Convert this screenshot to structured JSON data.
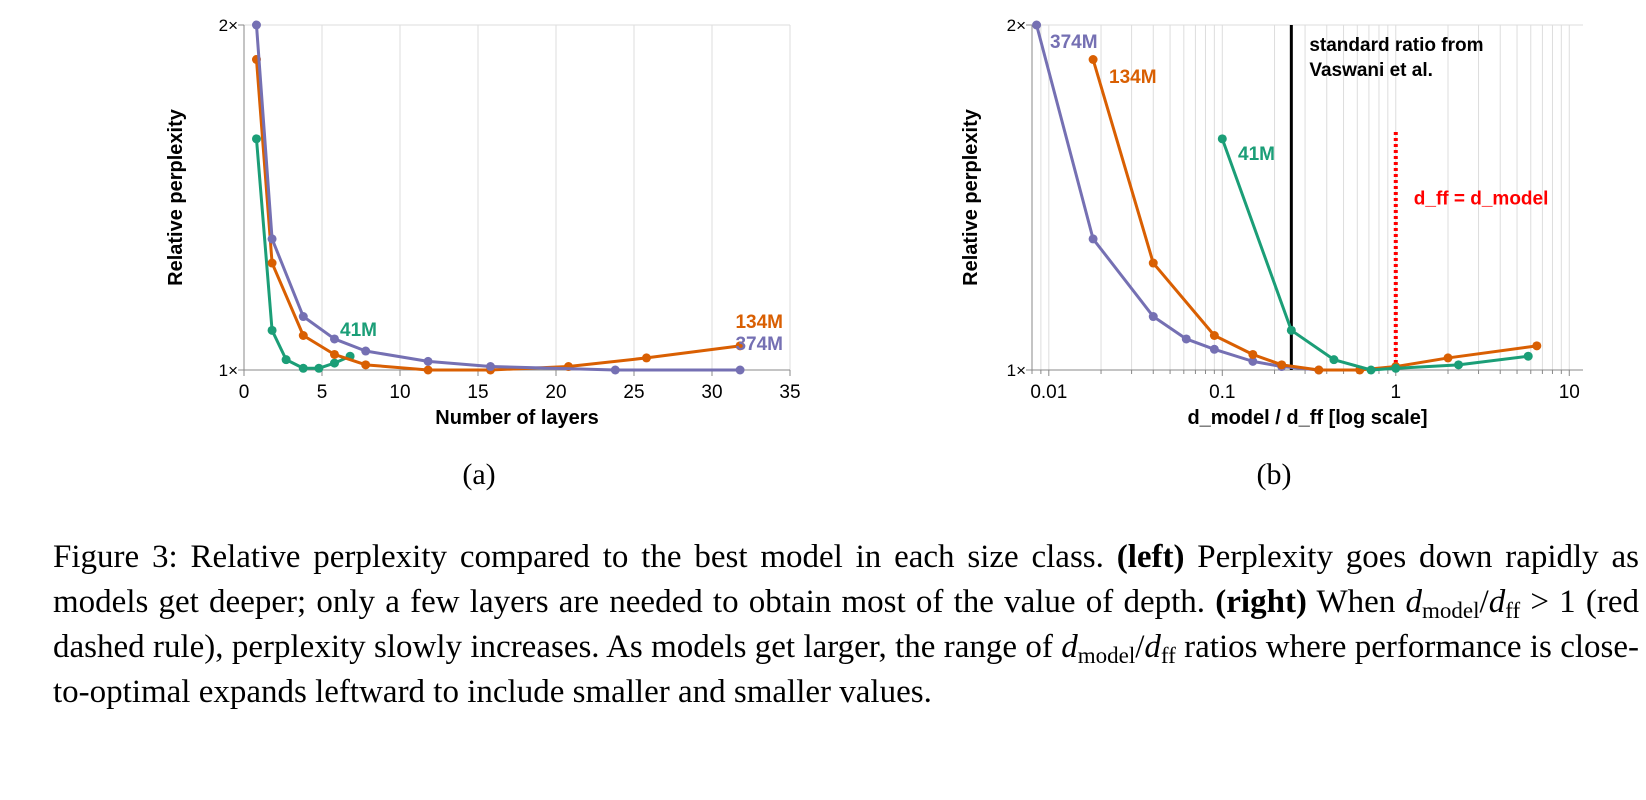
{
  "chart_data": [
    {
      "type": "line",
      "panel": "(a)",
      "xlabel": "Number of layers",
      "ylabel": "Relative perplexity",
      "xscale": "linear",
      "xlim": [
        0,
        35
      ],
      "xticks": [
        0,
        5,
        10,
        15,
        20,
        25,
        30,
        35
      ],
      "xtick_labels": [
        "0",
        "5",
        "10",
        "15",
        "20",
        "25",
        "30",
        "35"
      ],
      "ylim": [
        1,
        2
      ],
      "yticks": [
        1,
        2
      ],
      "ytick_labels": [
        "1×",
        "2×"
      ],
      "grid": true,
      "series": [
        {
          "name": "41M",
          "color": "#1b9e77",
          "x": [
            0.8,
            1.8,
            2.7,
            3.8,
            4.8,
            5.8,
            6.8
          ],
          "y": [
            1.67,
            1.115,
            1.03,
            1.005,
            1.005,
            1.02,
            1.04
          ]
        },
        {
          "name": "134M",
          "color": "#d95f02",
          "x": [
            0.8,
            1.8,
            3.8,
            5.8,
            7.8,
            11.8,
            15.8,
            20.8,
            25.8,
            31.8
          ],
          "y": [
            1.9,
            1.31,
            1.1,
            1.045,
            1.015,
            1.0,
            1.0,
            1.01,
            1.035,
            1.07
          ]
        },
        {
          "name": "374M",
          "color": "#7570b3",
          "x": [
            0.8,
            1.8,
            3.8,
            5.8,
            7.8,
            11.8,
            15.8,
            23.8,
            31.8
          ],
          "y": [
            2.0,
            1.38,
            1.155,
            1.09,
            1.055,
            1.025,
            1.01,
            1.0,
            1.0
          ]
        }
      ],
      "annotations": [
        {
          "text": "41M",
          "color": "#1b9e77"
        },
        {
          "text": "134M",
          "color": "#d95f02"
        },
        {
          "text": "374M",
          "color": "#7570b3"
        }
      ]
    },
    {
      "type": "line",
      "panel": "(b)",
      "xlabel": "d_model / d_ff   [log scale]",
      "ylabel": "Relative perplexity",
      "xscale": "log",
      "xlim": [
        0.008,
        12
      ],
      "xticks": [
        0.01,
        0.1,
        1,
        10
      ],
      "xtick_labels": [
        "0.01",
        "0.1",
        "1",
        "10"
      ],
      "ylim": [
        1,
        2
      ],
      "yticks": [
        1,
        2
      ],
      "ytick_labels": [
        "1×",
        "2×"
      ],
      "grid": true,
      "series": [
        {
          "name": "374M",
          "color": "#7570b3",
          "x": [
            0.0085,
            0.018,
            0.04,
            0.062,
            0.09,
            0.15,
            0.22,
            0.36
          ],
          "y": [
            2.0,
            1.38,
            1.155,
            1.09,
            1.06,
            1.025,
            1.01,
            1.0
          ]
        },
        {
          "name": "134M",
          "color": "#d95f02",
          "x": [
            0.018,
            0.04,
            0.09,
            0.15,
            0.22,
            0.36,
            0.62,
            1.0,
            2.0,
            6.5
          ],
          "y": [
            1.9,
            1.31,
            1.1,
            1.045,
            1.015,
            1.0,
            1.0,
            1.01,
            1.035,
            1.07
          ]
        },
        {
          "name": "41M",
          "color": "#1b9e77",
          "x": [
            0.1,
            0.25,
            0.44,
            0.72,
            1.0,
            2.3,
            5.8
          ],
          "y": [
            1.67,
            1.115,
            1.03,
            1.0,
            1.005,
            1.015,
            1.04
          ]
        }
      ],
      "reference_lines": [
        {
          "x": 0.25,
          "color": "#000000",
          "style": "solid",
          "label": "standard ratio from Vaswani et al.",
          "label_lines": [
            "standard ratio from",
            "Vaswani et al."
          ]
        },
        {
          "x": 1.0,
          "color": "#ff0000",
          "style": "dotted",
          "ylim": [
            1,
            1.69
          ],
          "label": "d_ff = d_model"
        }
      ],
      "annotations": [
        {
          "text": "374M",
          "color": "#7570b3"
        },
        {
          "text": "134M",
          "color": "#d95f02"
        },
        {
          "text": "41M",
          "color": "#1b9e77"
        }
      ]
    }
  ],
  "sublabels": [
    "(a)",
    "(b)"
  ],
  "caption": {
    "prefix": "Figure 3: Relative perplexity compared to the best model in each size class. ",
    "left_bold": "(left)",
    "left_text": " Perplexity goes down rapidly as models get deeper; only a few layers are needed to obtain most of the value of depth. ",
    "right_bold": "(right)",
    "when": " When ",
    "d": "d",
    "model_sub": "model",
    "slash": "/",
    "ff_sub": "ff",
    "cond": " > 1 (red dashed rule), perplexity slowly increases.  As models get larger, the range of ",
    "tail": " ratios where performance is close-to-optimal expands leftward to include smaller and smaller values."
  }
}
